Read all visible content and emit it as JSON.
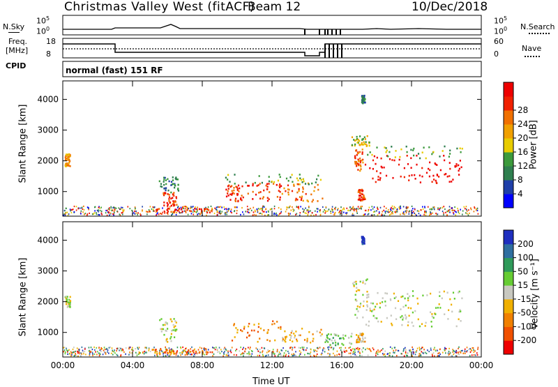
{
  "header": {
    "station": "Christmas Valley West (fitACF)",
    "beam": "Beam 12",
    "date": "10/Dec/2018"
  },
  "strip_panels": {
    "nsky": {
      "left_label": "N.Sky",
      "right_label": "N.Search",
      "left_ticks": [
        "10^5",
        "10^0"
      ],
      "right_ticks": [
        "10^5",
        "10^0"
      ]
    },
    "freq": {
      "left_label_top": "Freq.",
      "left_label_bottom": "[MHz]",
      "right_label": "Nave",
      "left_ticks": [
        "18",
        "8"
      ],
      "right_ticks": [
        "60",
        "0"
      ]
    },
    "cpid": {
      "label": "CPID",
      "value": "normal (fast) 151 RF"
    }
  },
  "colors": {
    "power_scale": [
      "#0000ff",
      "#1f3fa8",
      "#2f7f4f",
      "#3c9a3c",
      "#e8cc00",
      "#f0a000",
      "#f07000",
      "#f02000",
      "#ee0000"
    ],
    "velocity_scale": [
      "#1f2fbf",
      "#2f6fa0",
      "#2f9a5a",
      "#66cc33",
      "#c8c8c0",
      "#f0b000",
      "#f08000",
      "#f05000",
      "#ee0000"
    ]
  },
  "chart_data": [
    {
      "type": "heatmap",
      "name": "power-panel",
      "ylabel": "Slant Range [km]",
      "xlabel": "",
      "x_ticks": [
        "00:00",
        "04:00",
        "08:00",
        "12:00",
        "16:00",
        "20:00",
        "00:00"
      ],
      "y_ticks": [
        1000,
        2000,
        3000,
        4000
      ],
      "xlim_hours": [
        0,
        24
      ],
      "ylim_km": [
        200,
        4600
      ],
      "colorbar": {
        "label": "Power [dB]",
        "ticks": [
          4,
          8,
          12,
          16,
          20,
          24,
          28
        ]
      },
      "regions": [
        {
          "t0": 0.1,
          "t1": 0.4,
          "r0": 1850,
          "r1": 2250,
          "level": 5
        },
        {
          "t0": 5.7,
          "t1": 6.5,
          "r0": 550,
          "r1": 1000,
          "level": 7
        },
        {
          "t0": 5.5,
          "t1": 6.6,
          "r0": 1000,
          "r1": 1500,
          "level": 2
        },
        {
          "t0": 5.0,
          "t1": 8.6,
          "r0": 320,
          "r1": 480,
          "level": 7
        },
        {
          "t0": 9.3,
          "t1": 10.3,
          "r0": 700,
          "r1": 1250,
          "level": 7
        },
        {
          "t0": 10.3,
          "t1": 12.5,
          "r0": 700,
          "r1": 1300,
          "level": 7
        },
        {
          "t0": 12.5,
          "t1": 14.9,
          "r0": 700,
          "r1": 1300,
          "level": 6
        },
        {
          "t0": 9.3,
          "t1": 14.9,
          "r0": 1250,
          "r1": 1600,
          "level": 3
        },
        {
          "t0": 16.9,
          "t1": 17.3,
          "r0": 700,
          "r1": 1100,
          "level": 7
        },
        {
          "t0": 16.7,
          "t1": 17.2,
          "r0": 1700,
          "r1": 2400,
          "level": 6
        },
        {
          "t0": 17.3,
          "t1": 22.9,
          "r0": 1300,
          "r1": 2200,
          "level": 8
        },
        {
          "t0": 17.3,
          "t1": 22.9,
          "r0": 2100,
          "r1": 2500,
          "level": 3
        },
        {
          "t0": 16.5,
          "t1": 17.6,
          "r0": 2500,
          "r1": 2850,
          "level": 4
        },
        {
          "t0": 17.1,
          "t1": 17.3,
          "r0": 3900,
          "r1": 4150,
          "level": 2
        }
      ]
    },
    {
      "type": "heatmap",
      "name": "velocity-panel",
      "ylabel": "Slant Range [km]",
      "xlabel": "Time UT",
      "x_ticks": [
        "00:00",
        "04:00",
        "08:00",
        "12:00",
        "16:00",
        "20:00",
        "00:00"
      ],
      "y_ticks": [
        1000,
        2000,
        3000,
        4000
      ],
      "xlim_hours": [
        0,
        24
      ],
      "ylim_km": [
        200,
        4600
      ],
      "colorbar": {
        "label": "Velocity [m s⁻¹]",
        "ticks": [
          200,
          100,
          50,
          15,
          -15,
          -50,
          -100,
          -200
        ]
      },
      "regions": [
        {
          "t0": 0.1,
          "t1": 0.4,
          "r0": 1850,
          "r1": 2200,
          "level": 4
        },
        {
          "t0": 5.5,
          "t1": 6.5,
          "r0": 700,
          "r1": 1500,
          "level": 4
        },
        {
          "t0": 5.0,
          "t1": 8.6,
          "r0": 320,
          "r1": 480,
          "level": 6
        },
        {
          "t0": 9.5,
          "t1": 12.5,
          "r0": 700,
          "r1": 1400,
          "level": 6
        },
        {
          "t0": 12.5,
          "t1": 14.9,
          "r0": 700,
          "r1": 1200,
          "level": 5
        },
        {
          "t0": 15.0,
          "t1": 16.6,
          "r0": 600,
          "r1": 1000,
          "level": 3
        },
        {
          "t0": 16.8,
          "t1": 17.3,
          "r0": 700,
          "r1": 1000,
          "level": 5
        },
        {
          "t0": 17.3,
          "t1": 22.9,
          "r0": 1200,
          "r1": 2400,
          "level": 4
        },
        {
          "t0": 16.6,
          "t1": 17.6,
          "r0": 1500,
          "r1": 2800,
          "level": 4
        },
        {
          "t0": 17.1,
          "t1": 17.3,
          "r0": 3900,
          "r1": 4150,
          "level": 0
        }
      ]
    }
  ]
}
